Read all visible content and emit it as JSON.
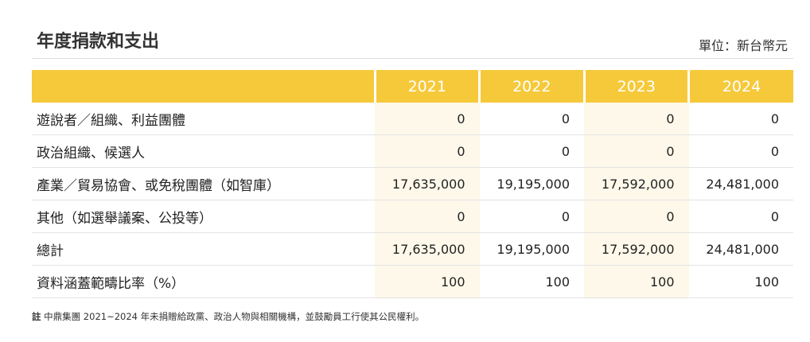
{
  "header": {
    "title": "年度捐款和支出",
    "unit": "單位：新台幣元"
  },
  "table": {
    "years": [
      "2021",
      "2022",
      "2023",
      "2024"
    ],
    "rows": [
      {
        "label": "遊說者／組織、利益團體",
        "values": [
          "0",
          "0",
          "0",
          "0"
        ]
      },
      {
        "label": "政治組織、候選人",
        "values": [
          "0",
          "0",
          "0",
          "0"
        ]
      },
      {
        "label": "產業／貿易協會、或免稅團體（如智庫）",
        "values": [
          "17,635,000",
          "19,195,000",
          "17,592,000",
          "24,481,000"
        ]
      },
      {
        "label": "其他（如選舉議案、公投等）",
        "values": [
          "0",
          "0",
          "0",
          "0"
        ]
      },
      {
        "label": "總計",
        "values": [
          "17,635,000",
          "19,195,000",
          "17,592,000",
          "24,481,000"
        ]
      },
      {
        "label": "資料涵蓋範疇比率（%）",
        "values": [
          "100",
          "100",
          "100",
          "100"
        ]
      }
    ]
  },
  "footnote": {
    "marker": "註",
    "text": "中鼎集團 2021~2024 年未捐贈給政黨、政治人物與相關機構，並鼓勵員工行使其公民權利。"
  }
}
